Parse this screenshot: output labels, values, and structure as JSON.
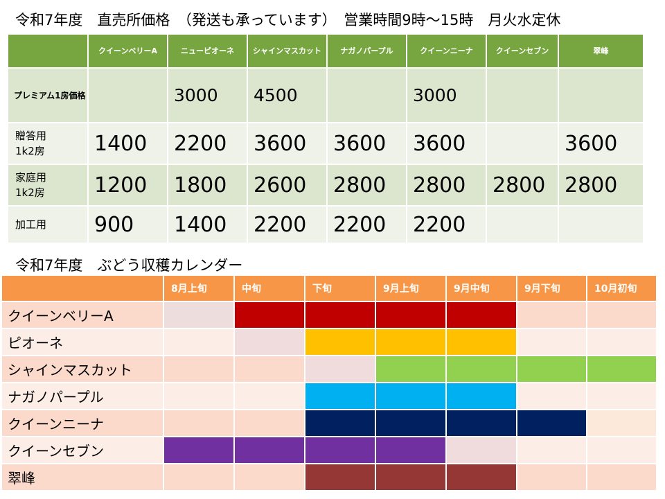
{
  "title": "令和7年度　直売所価格　（発送も承っています）　営業時間9時～15時　月火水定休",
  "price_table": {
    "headers": [
      "",
      "クイーンベリーA",
      "ニューピオーネ",
      "シャインマスカット",
      "ナガノパープル",
      "クイーンニーナ",
      "クイーンセブン",
      "翠峰"
    ],
    "rows": [
      {
        "label": "プレミアム1房価格",
        "values": [
          "",
          "3000",
          "4500",
          "",
          "3000",
          "",
          ""
        ]
      },
      {
        "label": "贈答用\n1k2房",
        "values": [
          "1400",
          "2200",
          "3600",
          "3600",
          "3600",
          "",
          "3600"
        ]
      },
      {
        "label": "家庭用\n1k2房",
        "values": [
          "1200",
          "1800",
          "2600",
          "2800",
          "2800",
          "2800",
          "2800"
        ]
      },
      {
        "label": "加工用",
        "values": [
          "900",
          "1400",
          "2200",
          "2200",
          "2200",
          "",
          ""
        ]
      }
    ]
  },
  "calendar": {
    "title": "令和7年度　ぶどう収穫カレンダー",
    "headers": [
      "",
      "8月上旬",
      "中旬",
      "下旬",
      "9月上旬",
      "9月中旬",
      "9月下旬",
      "10月初旬"
    ],
    "rows": [
      {
        "name": "クイーンベリーA",
        "cells": [
          "#eedddd",
          "#c00000",
          "#c00000",
          "#c00000",
          "#c00000",
          "",
          ""
        ]
      },
      {
        "name": "ピオーネ",
        "cells": [
          "",
          "#f0dcdc",
          "#ffc000",
          "#ffc000",
          "#ffc000",
          "",
          ""
        ]
      },
      {
        "name": "シャインマスカット",
        "cells": [
          "",
          "",
          "#f0dcdc",
          "#92d050",
          "#92d050",
          "#92d050",
          "#92d050"
        ]
      },
      {
        "name": "ナガノパープル",
        "cells": [
          "",
          "",
          "#00b0f0",
          "#00b0f0",
          "#00b0f0",
          "",
          ""
        ]
      },
      {
        "name": "クイーンニーナ",
        "cells": [
          "",
          "",
          "#002060",
          "#002060",
          "#002060",
          "#002060",
          "#fde9d9"
        ]
      },
      {
        "name": "クイーンセブン",
        "cells": [
          "#7030a0",
          "#7030a0",
          "#7030a0",
          "#7030a0",
          "#f0dcdc",
          "",
          ""
        ]
      },
      {
        "name": "翠峰",
        "cells": [
          "",
          "",
          "#953735",
          "#953735",
          "#953735",
          "",
          ""
        ]
      }
    ]
  }
}
